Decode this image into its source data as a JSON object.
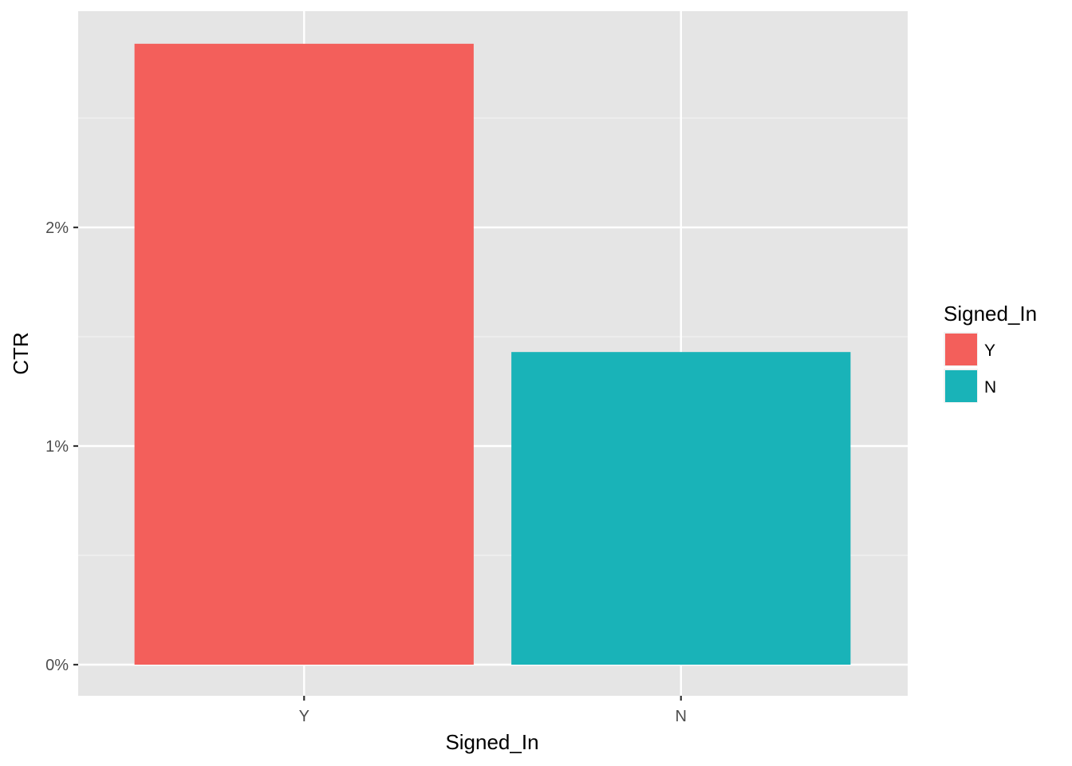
{
  "chart_data": {
    "type": "bar",
    "categories": [
      "Y",
      "N"
    ],
    "values": [
      2.84,
      1.43
    ],
    "value_unit": "%",
    "title": "",
    "xlabel": "Signed_In",
    "ylabel": "CTR",
    "ylim": [
      -0.14,
      2.98
    ],
    "yticks": [
      0,
      1,
      2
    ],
    "ytick_labels": [
      "0%",
      "1%",
      "2%"
    ],
    "grid": true,
    "legend": {
      "title": "Signed_In",
      "position": "right",
      "entries": [
        {
          "label": "Y",
          "color": "#F35F5B"
        },
        {
          "label": "N",
          "color": "#19B3B8"
        }
      ]
    },
    "colors": {
      "Y": "#F35F5B",
      "N": "#19B3B8",
      "panel_background": "#E5E5E5",
      "grid": "#FFFFFF"
    }
  }
}
